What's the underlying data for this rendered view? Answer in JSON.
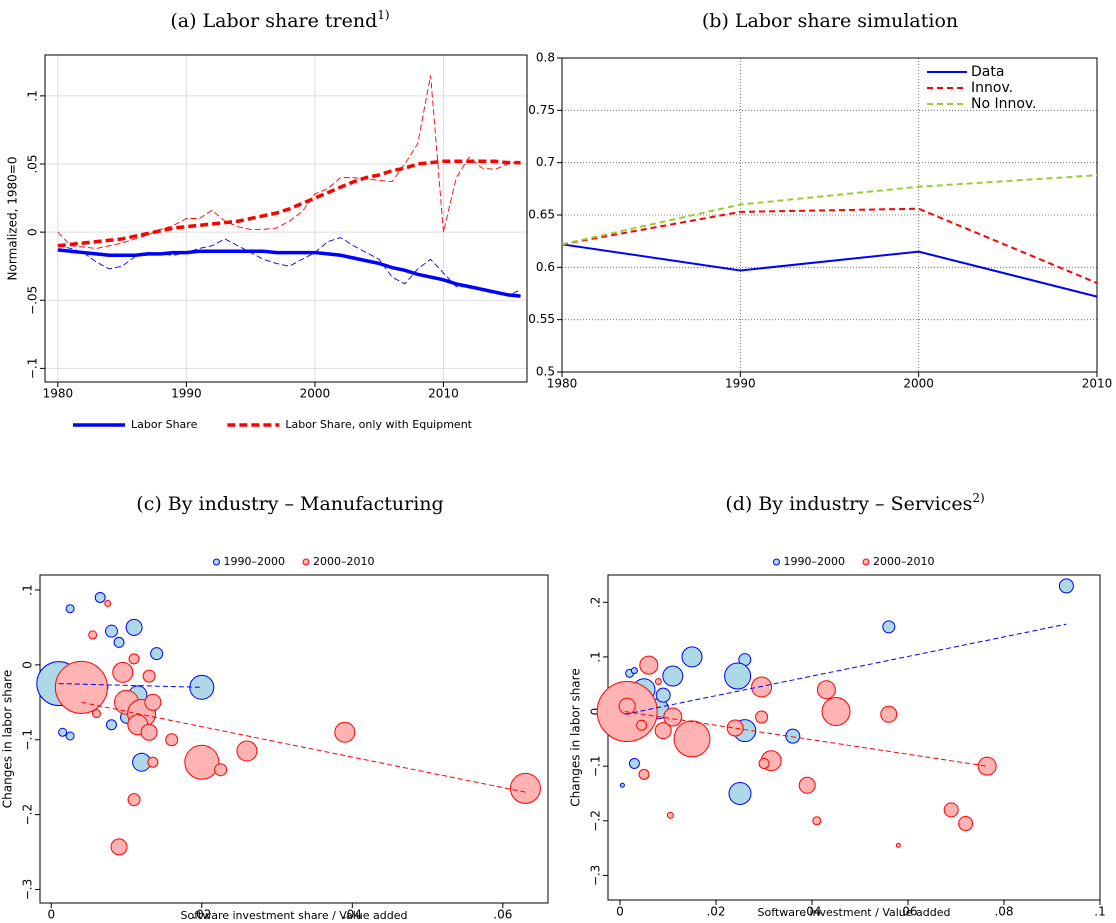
{
  "chart_data": [
    {
      "type": "line",
      "title": "(a) Labor share trend",
      "title_note": "1)",
      "ylabel": "Normalized, 1980=0",
      "x": [
        1980,
        1981,
        1982,
        1983,
        1984,
        1985,
        1986,
        1987,
        1988,
        1989,
        1990,
        1991,
        1992,
        1993,
        1994,
        1995,
        1996,
        1997,
        1998,
        1999,
        2000,
        2001,
        2002,
        2003,
        2004,
        2005,
        2006,
        2007,
        2008,
        2009,
        2010,
        2011,
        2012,
        2013,
        2014,
        2015,
        2016
      ],
      "series": [
        {
          "name": "Labor Share",
          "color": "#0000ff",
          "dashed": false,
          "values": [
            -0.013,
            -0.014,
            -0.015,
            -0.016,
            -0.017,
            -0.017,
            -0.017,
            -0.016,
            -0.016,
            -0.015,
            -0.015,
            -0.014,
            -0.014,
            -0.014,
            -0.014,
            -0.014,
            -0.014,
            -0.015,
            -0.015,
            -0.015,
            -0.015,
            -0.016,
            -0.017,
            -0.019,
            -0.021,
            -0.023,
            -0.026,
            -0.028,
            -0.031,
            -0.033,
            -0.035,
            -0.038,
            -0.04,
            -0.042,
            -0.044,
            -0.046,
            -0.047
          ],
          "raw": [
            -0.01,
            -0.012,
            -0.015,
            -0.022,
            -0.027,
            -0.025,
            -0.018,
            -0.015,
            -0.016,
            -0.017,
            -0.015,
            -0.012,
            -0.01,
            -0.005,
            -0.01,
            -0.015,
            -0.02,
            -0.023,
            -0.025,
            -0.02,
            -0.015,
            -0.007,
            -0.004,
            -0.01,
            -0.015,
            -0.02,
            -0.033,
            -0.038,
            -0.027,
            -0.02,
            -0.03,
            -0.04,
            -0.04,
            -0.043,
            -0.045,
            -0.047,
            -0.042
          ]
        },
        {
          "name": "Labor Share, only with Equipment",
          "color": "#ff0000",
          "dashed": true,
          "values": [
            -0.01,
            -0.009,
            -0.008,
            -0.007,
            -0.006,
            -0.005,
            -0.003,
            -0.001,
            0.001,
            0.003,
            0.004,
            0.005,
            0.006,
            0.007,
            0.008,
            0.01,
            0.012,
            0.014,
            0.017,
            0.021,
            0.025,
            0.029,
            0.033,
            0.037,
            0.04,
            0.042,
            0.045,
            0.047,
            0.05,
            0.051,
            0.052,
            0.052,
            0.052,
            0.052,
            0.052,
            0.051,
            0.051
          ],
          "raw": [
            0.0,
            -0.01,
            -0.011,
            -0.012,
            -0.01,
            -0.008,
            -0.005,
            -0.002,
            0.002,
            0.005,
            0.01,
            0.01,
            0.016,
            0.008,
            0.004,
            0.002,
            0.002,
            0.003,
            0.008,
            0.015,
            0.028,
            0.032,
            0.04,
            0.04,
            0.039,
            0.038,
            0.037,
            0.05,
            0.065,
            0.115,
            0.0,
            0.04,
            0.055,
            0.047,
            0.046,
            0.05,
            0.052
          ]
        }
      ],
      "xlim": [
        1979,
        2016.5
      ],
      "xticks": [
        1980,
        1990,
        2000,
        2010
      ],
      "ylim": [
        -0.11,
        0.13
      ],
      "yticks": [
        {
          "value": -0.1,
          "label": "−.1"
        },
        {
          "value": -0.05,
          "label": "−.05"
        },
        0,
        {
          "value": 0.05,
          "label": ".05"
        },
        {
          "value": 0.1,
          "label": ".1"
        }
      ],
      "grid": true,
      "grid_style": "solid",
      "legend": "bottom"
    },
    {
      "type": "line",
      "title": "(b) Labor share simulation",
      "x": [
        1980,
        1990,
        2000,
        2010
      ],
      "series": [
        {
          "name": "Data",
          "color": "#0000ff",
          "dashed": false,
          "values": [
            0.622,
            0.597,
            0.615,
            0.572
          ]
        },
        {
          "name": "Innov.",
          "color": "#ff0000",
          "dashed": true,
          "values": [
            0.622,
            0.653,
            0.656,
            0.585
          ]
        },
        {
          "name": "No Innov.",
          "color": "#9acd32",
          "dashed": true,
          "values": [
            0.622,
            0.66,
            0.677,
            0.688
          ]
        }
      ],
      "xlim": [
        1980,
        2010
      ],
      "xticks": [
        1980,
        1990,
        2000,
        2010
      ],
      "ylim": [
        0.5,
        0.8
      ],
      "yticks": [
        0.5,
        0.55,
        0.6,
        0.65,
        0.7,
        0.75,
        0.8
      ],
      "grid": true,
      "grid_style": "dotted",
      "legend": "top right"
    },
    {
      "type": "scatter",
      "title": "(c) By industry – Manufacturing",
      "xlabel": "Software investment share / Value added",
      "ylabel": "Changes in labor share",
      "series": [
        {
          "name": "1990–2000",
          "color": "#0000ff",
          "fill_color": "#add8e6",
          "x": [
            0.001,
            0.0025,
            0.0065,
            0.008,
            0.009,
            0.011,
            0.014,
            0.0115,
            0.012,
            0.02,
            0.0015,
            0.0025,
            0.008,
            0.01,
            0.007
          ],
          "values": [
            -0.025,
            0.075,
            0.09,
            0.045,
            0.03,
            0.05,
            0.015,
            -0.04,
            -0.13,
            -0.03,
            -0.09,
            -0.095,
            -0.08,
            -0.07,
            -0.03
          ],
          "sizes": [
            22,
            4,
            5,
            6,
            5,
            8,
            6,
            9,
            9,
            12,
            4,
            4,
            5,
            6,
            4
          ],
          "fit": {
            "x": [
              0.001,
              0.02
            ],
            "values": [
              -0.025,
              -0.03
            ]
          }
        },
        {
          "name": "2000–2010",
          "color": "#ff0000",
          "fill_color": "#ffb3b3",
          "x": [
            0.004,
            0.0055,
            0.0075,
            0.0095,
            0.011,
            0.013,
            0.01,
            0.012,
            0.0135,
            0.0115,
            0.013,
            0.016,
            0.0135,
            0.011,
            0.009,
            0.02,
            0.0225,
            0.026,
            0.039,
            0.063,
            0.006
          ],
          "values": [
            -0.03,
            0.04,
            0.082,
            -0.01,
            0.008,
            -0.015,
            -0.05,
            -0.065,
            -0.05,
            -0.08,
            -0.09,
            -0.1,
            -0.13,
            -0.18,
            -0.243,
            -0.13,
            -0.14,
            -0.115,
            -0.09,
            -0.165,
            -0.065
          ],
          "sizes": [
            26,
            4,
            3,
            10,
            5,
            6,
            12,
            14,
            8,
            10,
            8,
            6,
            5,
            6,
            8,
            17,
            6,
            10,
            10,
            15,
            4
          ],
          "fit": {
            "x": [
              0.004,
              0.063
            ],
            "values": [
              -0.05,
              -0.17
            ]
          }
        }
      ],
      "xlim": [
        -0.0015,
        0.066
      ],
      "xticks": [
        0,
        {
          "value": 0.02,
          "label": ".02"
        },
        {
          "value": 0.04,
          "label": ".04"
        },
        {
          "value": 0.06,
          "label": ".06"
        }
      ],
      "ylim": [
        -0.318,
        0.12
      ],
      "yticks": [
        {
          "value": -0.3,
          "label": "−.3"
        },
        {
          "value": -0.2,
          "label": "−.2"
        },
        {
          "value": -0.1,
          "label": "−.1"
        },
        0,
        {
          "value": 0.1,
          "label": ".1"
        }
      ],
      "grid": false,
      "legend": "top"
    },
    {
      "type": "scatter",
      "title": "(d) By industry – Services",
      "title_note": "2)",
      "xlabel": "Software investment / Value added",
      "ylabel": "Changes in labor share",
      "series": [
        {
          "name": "1990–2000",
          "color": "#0000ff",
          "fill_color": "#add8e6",
          "x": [
            0.093,
            0.056,
            0.015,
            0.026,
            0.0245,
            0.011,
            0.005,
            0.008,
            0.026,
            0.036,
            0.025,
            0.003,
            0.0005,
            0.002,
            0.003,
            0.009
          ],
          "values": [
            0.23,
            0.155,
            0.1,
            0.095,
            0.065,
            0.065,
            0.04,
            0.005,
            -0.035,
            -0.045,
            -0.15,
            -0.095,
            -0.135,
            0.07,
            0.075,
            0.03
          ],
          "sizes": [
            7,
            6,
            10,
            6,
            13,
            10,
            11,
            10,
            11,
            7,
            11,
            5,
            2,
            4,
            3,
            7
          ],
          "fit": {
            "x": [
              0.001,
              0.093
            ],
            "values": [
              -0.005,
              0.16
            ]
          }
        },
        {
          "name": "2000–2010",
          "color": "#ff0000",
          "fill_color": "#ffb3b3",
          "x": [
            0.0015,
            0.006,
            0.0015,
            0.009,
            0.011,
            0.015,
            0.024,
            0.0295,
            0.0295,
            0.0315,
            0.03,
            0.043,
            0.045,
            0.056,
            0.039,
            0.041,
            0.058,
            0.069,
            0.072,
            0.0765,
            0.005,
            0.0105,
            0.008,
            0.0045
          ],
          "values": [
            0,
            0.085,
            0.01,
            -0.035,
            -0.01,
            -0.05,
            -0.03,
            0.045,
            -0.01,
            -0.09,
            -0.095,
            0.04,
            0,
            -0.005,
            -0.135,
            -0.2,
            -0.245,
            -0.18,
            -0.205,
            -0.1,
            -0.115,
            -0.19,
            0.055,
            -0.025
          ],
          "sizes": [
            30,
            9,
            8,
            8,
            9,
            18,
            8,
            10,
            6,
            10,
            5,
            9,
            14,
            8,
            8,
            4,
            2,
            7,
            7,
            9,
            5,
            3,
            3,
            5
          ],
          "fit": {
            "x": [
              0.001,
              0.0765
            ],
            "values": [
              0.0,
              -0.1
            ]
          }
        }
      ],
      "xlim": [
        -0.0025,
        0.1
      ],
      "xticks": [
        0,
        {
          "value": 0.02,
          "label": ".02"
        },
        {
          "value": 0.04,
          "label": ".04"
        },
        {
          "value": 0.06,
          "label": ".06"
        },
        {
          "value": 0.08,
          "label": ".08"
        },
        {
          "value": 0.1,
          "label": ".1"
        }
      ],
      "ylim": [
        -0.345,
        0.25
      ],
      "yticks": [
        {
          "value": -0.3,
          "label": "−.3"
        },
        {
          "value": -0.2,
          "label": "−.2"
        },
        {
          "value": -0.1,
          "label": "−.1"
        },
        0,
        {
          "value": 0.1,
          "label": ".1"
        },
        {
          "value": 0.2,
          "label": ".2"
        }
      ],
      "grid": false,
      "legend": "top"
    }
  ]
}
